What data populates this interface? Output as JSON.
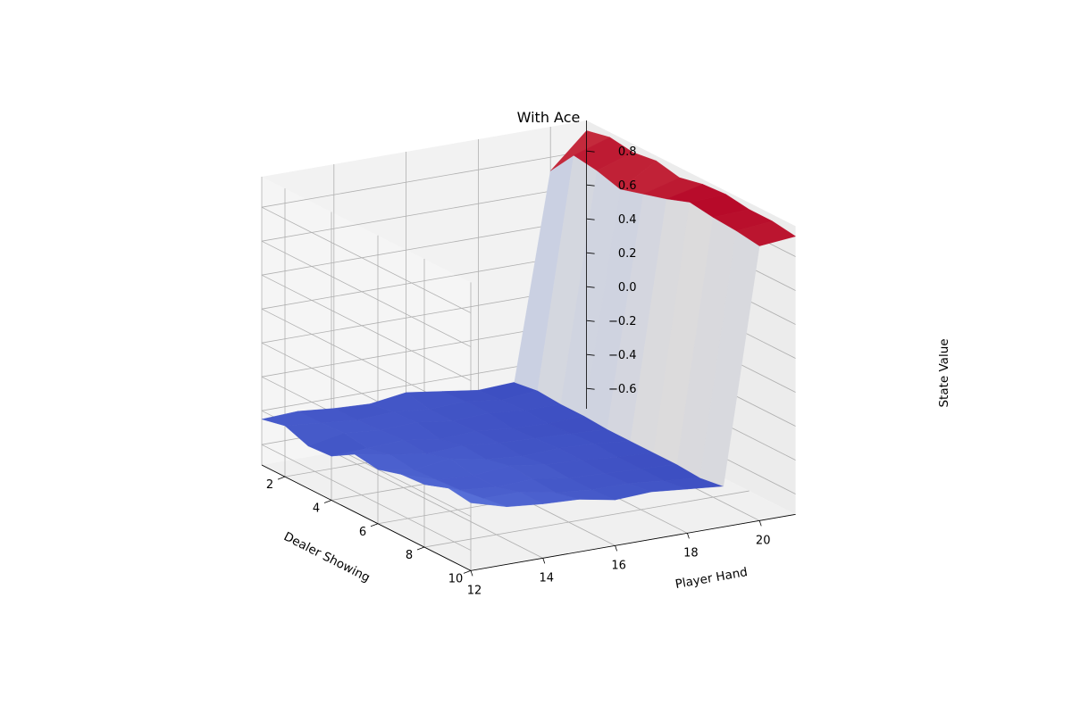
{
  "chart_data": {
    "type": "surface3d",
    "title": "With Ace",
    "xlabel": "Dealer Showing",
    "ylabel": "Player Hand",
    "zlabel": "State Value",
    "colormap": "coolwarm",
    "x_ticks": [
      "2",
      "4",
      "6",
      "8",
      "10"
    ],
    "y_ticks": [
      "12",
      "14",
      "16",
      "18",
      "20"
    ],
    "z_ticks": [
      "−0.6",
      "−0.4",
      "−0.2",
      "0.0",
      "0.2",
      "0.4",
      "0.6",
      "0.8"
    ],
    "x": [
      1,
      2,
      3,
      4,
      5,
      6,
      7,
      8,
      9,
      10
    ],
    "y": [
      12,
      13,
      14,
      15,
      16,
      17,
      18,
      19,
      20,
      21
    ],
    "z": [
      [
        -0.45,
        -0.44,
        -0.46,
        -0.47,
        -0.44,
        -0.47,
        -0.5,
        -0.49,
        0.72,
        0.92
      ],
      [
        -0.42,
        -0.44,
        -0.46,
        -0.45,
        -0.47,
        -0.46,
        -0.49,
        -0.47,
        0.88,
        0.95
      ],
      [
        -0.47,
        -0.43,
        -0.45,
        -0.44,
        -0.47,
        -0.46,
        -0.48,
        -0.48,
        0.86,
        0.93
      ],
      [
        -0.46,
        -0.45,
        -0.44,
        -0.47,
        -0.46,
        -0.48,
        -0.49,
        -0.48,
        0.82,
        0.95
      ],
      [
        -0.38,
        -0.42,
        -0.45,
        -0.44,
        -0.46,
        -0.47,
        -0.48,
        -0.49,
        0.86,
        0.92
      ],
      [
        -0.4,
        -0.44,
        -0.41,
        -0.45,
        -0.47,
        -0.46,
        -0.47,
        -0.49,
        0.9,
        0.95
      ],
      [
        -0.36,
        -0.43,
        -0.44,
        -0.42,
        -0.45,
        -0.46,
        -0.48,
        -0.49,
        0.95,
        0.96
      ],
      [
        -0.35,
        -0.42,
        -0.44,
        -0.43,
        -0.46,
        -0.47,
        -0.48,
        -0.49,
        0.93,
        0.94
      ],
      [
        -0.3,
        -0.4,
        -0.4,
        -0.44,
        -0.46,
        -0.46,
        -0.48,
        -0.5,
        0.92,
        0.94
      ],
      [
        -0.32,
        -0.38,
        -0.4,
        -0.41,
        -0.45,
        -0.44,
        -0.46,
        -0.48,
        0.9,
        0.92
      ]
    ]
  }
}
